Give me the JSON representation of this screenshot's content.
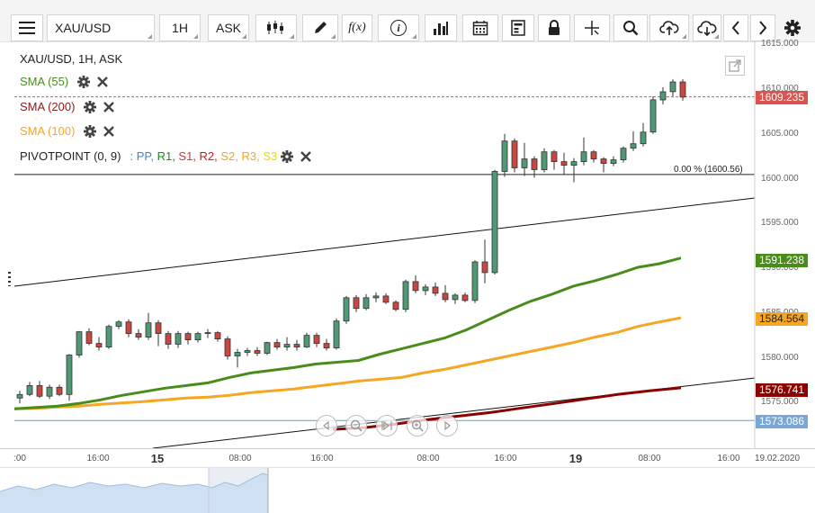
{
  "toolbar": {
    "symbol": "XAU/USD",
    "timeframe": "1H",
    "price_side": "ASK",
    "function_label": "f(x)",
    "info_label": "i"
  },
  "legend": {
    "title": "XAU/USD, 1H, ASK",
    "sma55": "SMA (55)",
    "sma200": "SMA (200)",
    "sma100": "SMA (100)",
    "pivot": "PIVOTPOINT (0, 9)",
    "pivot_sep": ": ",
    "pivot_items": [
      {
        "label": "PP",
        "color": "#3a87d8"
      },
      {
        "label": "R1",
        "color": "#1e8c1e"
      },
      {
        "label": "S1",
        "color": "#d63030"
      },
      {
        "label": "R2",
        "color": "#c02020"
      },
      {
        "label": "S2",
        "color": "#f2a51a"
      },
      {
        "label": "R3",
        "color": "#f2a51a"
      },
      {
        "label": "S3",
        "color": "#f2d600"
      }
    ]
  },
  "colors": {
    "up": "#4f9a74",
    "down": "#c9473f",
    "sma55": "#4a8c1c",
    "sma100": "#f5a623",
    "sma200": "#8b0000",
    "last_price": "#d9534f",
    "pp_line": "#7aa7d6"
  },
  "fib_label": "0.00 % (1600.56)",
  "price_axis": [
    "1615.000",
    "1610.000",
    "1605.000",
    "1600.000",
    "1595.000",
    "1590.000",
    "1585.000",
    "1580.000",
    "1575.000"
  ],
  "price_labels": {
    "last": "1609.235",
    "sma55": "1591.238",
    "sma100": "1584.564",
    "sma200": "1576.741",
    "pp": "1573.086"
  },
  "time_axis": [
    ":00",
    "16:00",
    "15",
    "08:00",
    "16:00",
    "08:00",
    "16:00",
    "19",
    "08:00",
    "16:00",
    "19.02.2020"
  ],
  "chart_data": {
    "type": "candlestick",
    "symbol": "XAU/USD",
    "timeframe": "1H",
    "ylim": [
      1570,
      1616
    ],
    "candles": [
      [
        1575.6,
        1576.4,
        1575.0,
        1576.0
      ],
      [
        1576.0,
        1577.4,
        1575.8,
        1577.0
      ],
      [
        1577.0,
        1577.5,
        1575.6,
        1575.8
      ],
      [
        1575.8,
        1577.1,
        1575.5,
        1576.8
      ],
      [
        1576.8,
        1577.1,
        1575.8,
        1576.0
      ],
      [
        1576.0,
        1580.5,
        1575.3,
        1580.4
      ],
      [
        1580.4,
        1583.1,
        1580.1,
        1583.0
      ],
      [
        1583.0,
        1583.4,
        1581.5,
        1581.7
      ],
      [
        1581.7,
        1582.4,
        1580.9,
        1581.3
      ],
      [
        1581.3,
        1583.8,
        1581.1,
        1583.6
      ],
      [
        1583.6,
        1584.3,
        1583.3,
        1584.1
      ],
      [
        1584.1,
        1584.4,
        1582.4,
        1582.8
      ],
      [
        1582.8,
        1583.3,
        1582.1,
        1582.4
      ],
      [
        1582.4,
        1585.1,
        1582.1,
        1584.0
      ],
      [
        1584.0,
        1584.3,
        1581.4,
        1582.8
      ],
      [
        1582.8,
        1583.1,
        1581.1,
        1581.6
      ],
      [
        1581.6,
        1583.1,
        1581.2,
        1582.8
      ],
      [
        1582.8,
        1583.0,
        1581.6,
        1582.1
      ],
      [
        1582.1,
        1583.0,
        1581.8,
        1582.8
      ],
      [
        1582.8,
        1583.3,
        1582.3,
        1582.9
      ],
      [
        1582.9,
        1583.1,
        1581.9,
        1582.2
      ],
      [
        1582.2,
        1582.5,
        1579.9,
        1580.3
      ],
      [
        1580.3,
        1581.1,
        1579.0,
        1580.7
      ],
      [
        1580.7,
        1581.2,
        1580.3,
        1580.9
      ],
      [
        1580.9,
        1581.3,
        1580.3,
        1580.6
      ],
      [
        1580.6,
        1581.9,
        1580.4,
        1581.8
      ],
      [
        1581.8,
        1582.2,
        1581.0,
        1581.3
      ],
      [
        1581.3,
        1582.4,
        1580.9,
        1581.6
      ],
      [
        1581.6,
        1582.1,
        1580.9,
        1581.3
      ],
      [
        1581.3,
        1582.9,
        1581.2,
        1582.6
      ],
      [
        1582.6,
        1582.9,
        1581.3,
        1581.7
      ],
      [
        1581.7,
        1582.2,
        1580.9,
        1581.2
      ],
      [
        1581.2,
        1584.5,
        1581.0,
        1584.2
      ],
      [
        1584.2,
        1587.0,
        1583.9,
        1586.8
      ],
      [
        1586.8,
        1587.1,
        1585.2,
        1585.6
      ],
      [
        1585.6,
        1587.2,
        1585.4,
        1586.8
      ],
      [
        1586.8,
        1587.4,
        1586.3,
        1587.0
      ],
      [
        1587.0,
        1587.3,
        1586.1,
        1586.3
      ],
      [
        1586.3,
        1586.5,
        1585.3,
        1585.5
      ],
      [
        1585.5,
        1588.8,
        1585.2,
        1588.6
      ],
      [
        1588.6,
        1589.3,
        1587.3,
        1587.6
      ],
      [
        1587.6,
        1588.3,
        1587.1,
        1588.0
      ],
      [
        1588.0,
        1588.5,
        1587.0,
        1587.3
      ],
      [
        1587.3,
        1588.2,
        1586.3,
        1586.6
      ],
      [
        1586.6,
        1587.3,
        1586.1,
        1587.1
      ],
      [
        1587.1,
        1587.4,
        1586.3,
        1586.5
      ],
      [
        1586.5,
        1591.0,
        1586.2,
        1590.8
      ],
      [
        1590.8,
        1593.3,
        1588.4,
        1589.6
      ],
      [
        1589.6,
        1601.1,
        1589.4,
        1600.9
      ],
      [
        1600.9,
        1605.1,
        1600.3,
        1604.3
      ],
      [
        1604.3,
        1604.6,
        1600.8,
        1601.3
      ],
      [
        1601.3,
        1604.1,
        1600.4,
        1602.3
      ],
      [
        1602.3,
        1602.6,
        1600.2,
        1601.1
      ],
      [
        1601.1,
        1603.5,
        1600.8,
        1603.1
      ],
      [
        1603.1,
        1603.3,
        1601.1,
        1602.0
      ],
      [
        1602.0,
        1603.0,
        1600.6,
        1601.6
      ],
      [
        1601.6,
        1602.4,
        1599.7,
        1602.0
      ],
      [
        1602.0,
        1604.7,
        1601.6,
        1603.1
      ],
      [
        1603.1,
        1603.3,
        1601.9,
        1602.3
      ],
      [
        1602.3,
        1602.5,
        1600.8,
        1601.8
      ],
      [
        1601.8,
        1602.6,
        1601.5,
        1602.2
      ],
      [
        1602.2,
        1603.7,
        1601.9,
        1603.5
      ],
      [
        1603.5,
        1605.4,
        1603.2,
        1604.0
      ],
      [
        1604.0,
        1606.3,
        1603.7,
        1605.3
      ],
      [
        1605.3,
        1609.3,
        1605.1,
        1608.9
      ],
      [
        1608.9,
        1610.3,
        1608.4,
        1609.8
      ],
      [
        1609.8,
        1611.2,
        1609.3,
        1610.9
      ],
      [
        1610.9,
        1611.2,
        1608.8,
        1609.2
      ]
    ],
    "sma55": [
      [
        1574.4,
        1574.55
      ],
      [
        1574.7,
        1575.0
      ],
      [
        1575.4,
        1575.9
      ],
      [
        1576.3,
        1576.7
      ],
      [
        1577.0,
        1577.3
      ],
      [
        1577.9,
        1578.4
      ],
      [
        1578.7,
        1579.0
      ],
      [
        1579.4,
        1579.6
      ],
      [
        1579.8,
        1580.5
      ],
      [
        1581.1,
        1581.7
      ],
      [
        1582.3,
        1583.2
      ],
      [
        1584.3,
        1585.4
      ],
      [
        1586.4,
        1587.2
      ],
      [
        1588.1,
        1588.7
      ],
      [
        1589.4,
        1590.2
      ],
      [
        1590.6,
        1591.24
      ]
    ],
    "sma100": [
      [
        1574.4,
        1574.45
      ],
      [
        1574.6,
        1574.7
      ],
      [
        1574.9,
        1575.05
      ],
      [
        1575.2,
        1575.4
      ],
      [
        1575.6,
        1575.7
      ],
      [
        1575.9,
        1576.2
      ],
      [
        1576.4,
        1576.6
      ],
      [
        1576.9,
        1577.2
      ],
      [
        1577.5,
        1577.7
      ],
      [
        1577.9,
        1578.4
      ],
      [
        1578.8,
        1579.3
      ],
      [
        1579.8,
        1580.3
      ],
      [
        1580.8,
        1581.3
      ],
      [
        1581.8,
        1582.4
      ],
      [
        1582.9,
        1583.6
      ],
      [
        1584.1,
        1584.56
      ]
    ],
    "sma200": [
      [
        1572.1,
        1572.3
      ],
      [
        1572.7,
        1573.2
      ],
      [
        1573.6,
        1574.0
      ],
      [
        1574.5,
        1575.0
      ],
      [
        1575.5,
        1576.0
      ],
      [
        1576.4,
        1576.74
      ]
    ],
    "trendlines": [
      {
        "from": [
          1588.0
        ],
        "to": [
          1598.0
        ]
      },
      {
        "from": [
          1570.0
        ],
        "to": [
          1578.0
        ]
      }
    ],
    "horizontal_levels": {
      "fib_0": 1600.56,
      "pp": 1573.086,
      "last": 1609.235
    }
  }
}
